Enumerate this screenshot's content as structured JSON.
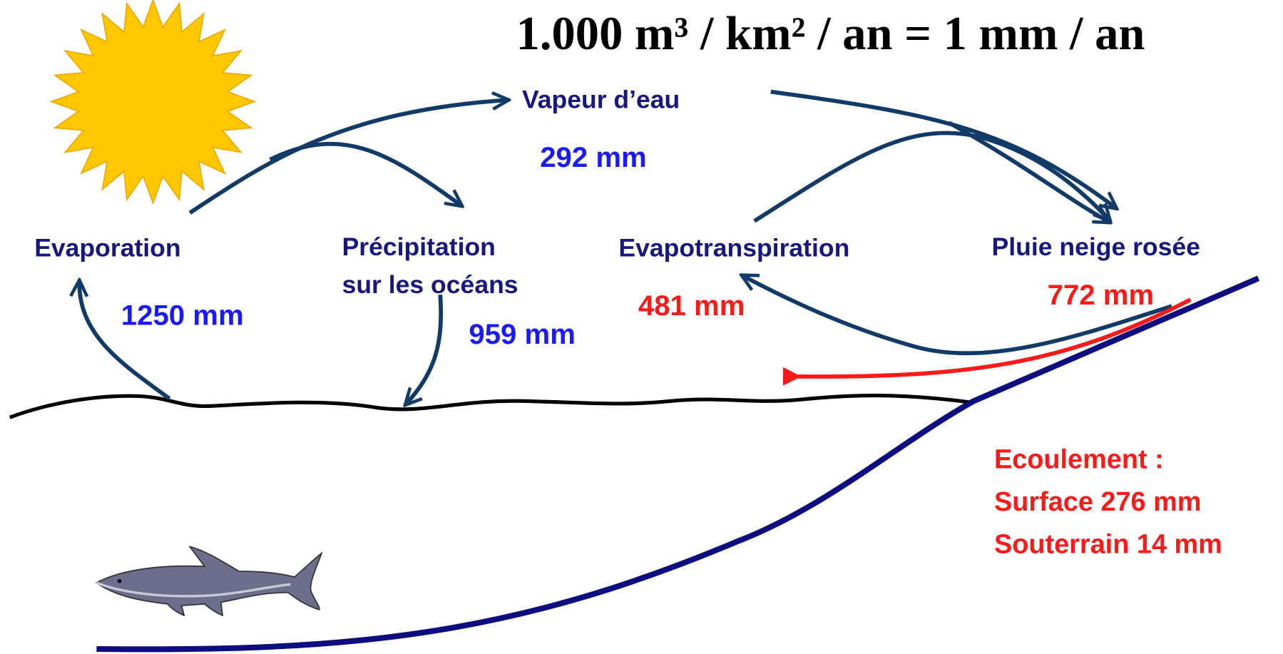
{
  "title": "1.000 m³ / km² / an = 1 mm / an",
  "nodes": [
    {
      "label": "Vapeur d’eau",
      "amount": "292 mm"
    },
    {
      "label": "Evaporation",
      "amount": "1250 mm"
    },
    {
      "label": [
        "Précipitation",
        "sur les océans"
      ],
      "amount": "959 mm"
    },
    {
      "label": "Evapotranspiration",
      "amount": "481 mm"
    },
    {
      "label": "Pluie neige rosée",
      "amount": "772 mm"
    }
  ],
  "runoff": {
    "heading": "Ecoulement :",
    "lines": [
      "Surface 276 mm",
      "Souterrain 14 mm"
    ]
  }
}
